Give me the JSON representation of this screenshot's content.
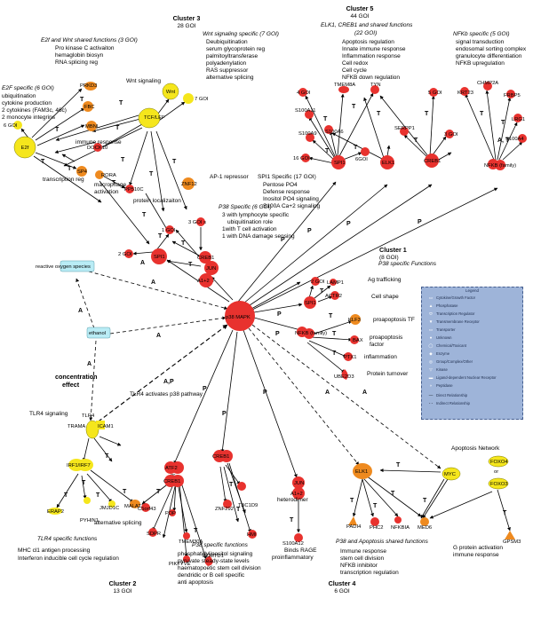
{
  "clusters": {
    "c3_title": "Cluster 3",
    "c3_count": "28 GOI",
    "c5_title": "Cluster 5",
    "c5_count": "44 GOI",
    "c1_title": "Cluster 1",
    "c1_count": "(8 GOI)",
    "c1_sub": "P38 specific Functions",
    "c2_title": "Cluster 2",
    "c2_count": "13 GOI",
    "c4_title": "Cluster 4",
    "c4_count": "6 GOI"
  },
  "annotations": {
    "e2f_wnt_title": "E2f and Wnt shared functions (3 GOI)",
    "e2f_wnt_lines": [
      "Pro kinase C activaiton",
      "hemaglobin biosyn",
      "RNA splicing reg"
    ],
    "wnt_title": "Wnt signaling specific (7 GOI)",
    "wnt_lines": [
      "Deubiquitination",
      "serum glycoprotein reg",
      "palmitoyltransferase",
      "polyadenylation",
      "RAS suppressor",
      "alternative splicing"
    ],
    "e2f_title": "E2F specific (6 GOI)",
    "e2f_lines": [
      "ubiquitination",
      "cytokine production",
      "2 cytokines (FAM3c, 46c)",
      "2 monocyte integrins"
    ],
    "wnt_signaling": "Wnt signaling",
    "immune_response": "immune response",
    "transcription_reg": "transcription reg",
    "macrophage": [
      "macrophage",
      "activation"
    ],
    "protein_local": "protein localizaiton",
    "ap1": "AP-1 repressor",
    "spi1_title": "SPI1 Specific (17 GOI)",
    "spi1_lines": [
      "Pentose PO4",
      "Defense response",
      "Inositol PO4 signaling",
      "S100A Ca+2 signaling"
    ],
    "p38_title": "P38 Specific (6 GOI)",
    "p38_lines": [
      "3 with lymphocyte specific",
      "ubiquitination role",
      "1with T cell activation",
      "1 with DNA damage sensing"
    ],
    "elk_title": "ELK1, CREB1 and shared functions",
    "elk_count": "(22 GOI)",
    "elk_lines": [
      "Apoptosis regulation",
      "Innate immune response",
      "Inflammation response",
      "Cell redox",
      "Cell cycle",
      "NFKB down regulation"
    ],
    "nfkb_title": "NFKb specific (5 GOI)",
    "nfkb_lines": [
      "signal transduction",
      "endosomal sorting complex",
      "granulocyte differentiation",
      "NFKB upregulation"
    ],
    "ag": "Ag trafficking",
    "cellshape": "Cell shape",
    "proapop_tf": "proapoptosis TF",
    "proapop_factor": [
      "proapoptosis",
      "factor"
    ],
    "inflammation": "inflammation",
    "turnover": "Protein turnover",
    "conc": [
      "concentration",
      "effect"
    ],
    "tlr4_path": "TLR4 activates p38 pathway",
    "tlr4_sig": "TLR4 signaling",
    "alt_splicing": "alternative splicing",
    "tlr4_specific": "TLR4 specific functions",
    "mhc_lines": [
      "MHC cl1 antigen processing",
      "Interferon inducible cell cycle regulation"
    ],
    "p38fn_title": "P38 specific functions",
    "p38fn_lines": [
      "phosphatidylinositol signaling",
      "pyruvate steady-state levels",
      "haematopoetic stem cell division",
      "dendridic or B cell specific",
      "anti apoptosis"
    ],
    "heterodimer": "heterodimer",
    "binds_lines": [
      "Binds RAGE",
      "proinflammatory"
    ],
    "apop_net": "Apoptosis Network",
    "p38apop_title": "P38 and Apoptosis shared functions",
    "p38apop_lines": [
      "Immune response",
      "stem cell division",
      "NFKB inhibitor",
      "transcription regulation"
    ],
    "gprot_lines": [
      "G protein activation",
      "immune response"
    ]
  },
  "nodes": {
    "wnt": "Wnt",
    "seven_goi": "7 GOI",
    "prkd3": "PRKD3",
    "fbc": "FBC",
    "mbnl": "MBNL",
    "tcf": "TCF/LEF",
    "e2f": "E2f",
    "six_goi": "6 GOI",
    "dock10": "DOCK10",
    "sp4": "SP4",
    "rora": "RORA",
    "pp510c": "PP510C",
    "znf12": "ZNF12",
    "three_goi_s": "3 GOI s",
    "one_goi": "1 GOI",
    "two_goi": "2 GOI",
    "spi1_main": "SPI1",
    "creb1_p38": "CREB1",
    "or1": "or",
    "jun_a": "JUN",
    "jun_b": "A1+2",
    "four_goi": "4 GOI",
    "tmem8a": "TMEM8A",
    "tyn": "TYN",
    "s100a11": "S100A11",
    "s100a9": "S100A9",
    "s100a6": "S100A6",
    "sixteen_goi": "16 GOI",
    "six_goi_b": "6GOI",
    "spi1_c5": "SPI1",
    "elk1_c5": "ELK1",
    "five_goi": "5 GOI",
    "serpp1": "SERPP1",
    "three_goi": "3 GOI",
    "creb1_c5": "CREB1",
    "chmp2a": "CHMP2A",
    "krt23": "KRT23",
    "frbp5": "FRBP5",
    "lrg1": "LRG1",
    "s100a4": "S100A4",
    "nfkb_c5": "NFKB (family)",
    "ros": "reactive oxygen species",
    "ethanol": "ethanol",
    "p38": "p38 MAPK",
    "two_goi_c1": "2 GOI",
    "lamp1": "LAMP1",
    "actr2": "ACTR2",
    "spi1_c1": "SPI1",
    "klf3": "KLF3",
    "nfkb_c1": "NFKB (family)",
    "bax": "BAX",
    "ptx1": "PTX1",
    "ube2d3": "UBE2D3",
    "tlr4": "TLR4",
    "trama": "TRAMA",
    "icam1": "ICAM1",
    "irf": "IRF1/IRF7",
    "erap2": "ERAP2",
    "pyhin1": "PYHIN1",
    "jmjd1c": "JMJD1C",
    "malat1": "MALAT1",
    "atf2": "ATF2",
    "or2": "or",
    "creb1_c2": "CREB1",
    "creb1_c2b": "CREB1",
    "c5orf43": "C5orf43",
    "sdpr": "SDPR",
    "pdp": "PDP",
    "tmem30a": "TMEM30A",
    "pikfyve": "PIKFYVE",
    "znf292": "ZNF292",
    "pcmtd1": "PCMTD1",
    "tbc1d9": "TBC1D9",
    "hmi": "HMI",
    "jun_c4a": "JUN",
    "jun_c4b": "A1+2",
    "s100a12": "S100A12",
    "elk1_c4": "ELK1",
    "myc": "MYC",
    "foxo4": "FOXO4",
    "or3": "or",
    "foxo3": "FOXO3",
    "padi4": "PADI4",
    "phc2": "PHC2",
    "nfkbia": "NFKBIA",
    "med6": "MED6",
    "gpsm3": "GPSM3"
  },
  "edge_letters": [
    "T",
    "A",
    "P",
    "A,P",
    "A, T"
  ],
  "legend": {
    "title": "Legend",
    "items": [
      "Cytokine/Growth Factor",
      "Phosphatase",
      "Transcription Regulator",
      "Transmembrane Receptor",
      "Transporter",
      "Unknown",
      "Chemical/Toxicant",
      "Enzyme",
      "Group/Complex/Other",
      "Kinase",
      "Ligand-dependent Nuclear Receptor",
      "Peptidase",
      "Direct Relationship",
      "Indirect Relationship"
    ]
  },
  "colors": {
    "red": "#e8322e",
    "orange": "#ee8a1f",
    "yellow": "#f5e61c",
    "cyan": "#b9ecf5",
    "legend_bg": "#9eb4d9"
  }
}
